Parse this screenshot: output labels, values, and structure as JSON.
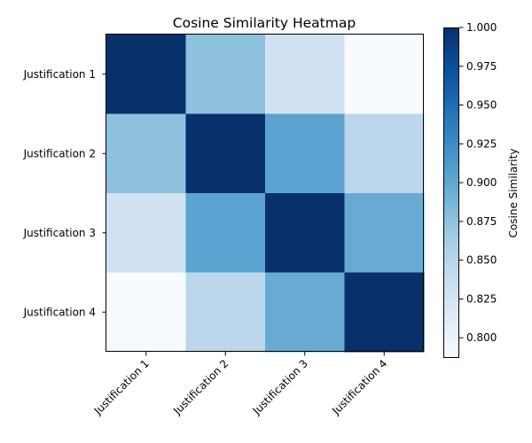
{
  "chart_data": {
    "type": "heatmap",
    "title": "Cosine Similarity Heatmap",
    "xlabel": "",
    "ylabel": "",
    "x_categories": [
      "Justification 1",
      "Justification 2",
      "Justification 3",
      "Justification 4"
    ],
    "y_categories": [
      "Justification 1",
      "Justification 2",
      "Justification 3",
      "Justification 4"
    ],
    "matrix": [
      [
        1.0,
        0.875,
        0.829,
        0.787
      ],
      [
        0.875,
        1.0,
        0.904,
        0.847
      ],
      [
        0.829,
        0.904,
        1.0,
        0.896
      ],
      [
        0.787,
        0.847,
        0.896,
        1.0
      ]
    ],
    "colormap": "Blues",
    "colorbar": {
      "label": "Cosine Similarity",
      "range": [
        0.787,
        1.0
      ],
      "ticks": [
        "0.800",
        "0.825",
        "0.850",
        "0.875",
        "0.900",
        "0.925",
        "0.950",
        "0.975",
        "1.000"
      ],
      "tick_values": [
        0.8,
        0.825,
        0.85,
        0.875,
        0.9,
        0.925,
        0.95,
        0.975,
        1.0
      ]
    },
    "grid": false
  }
}
